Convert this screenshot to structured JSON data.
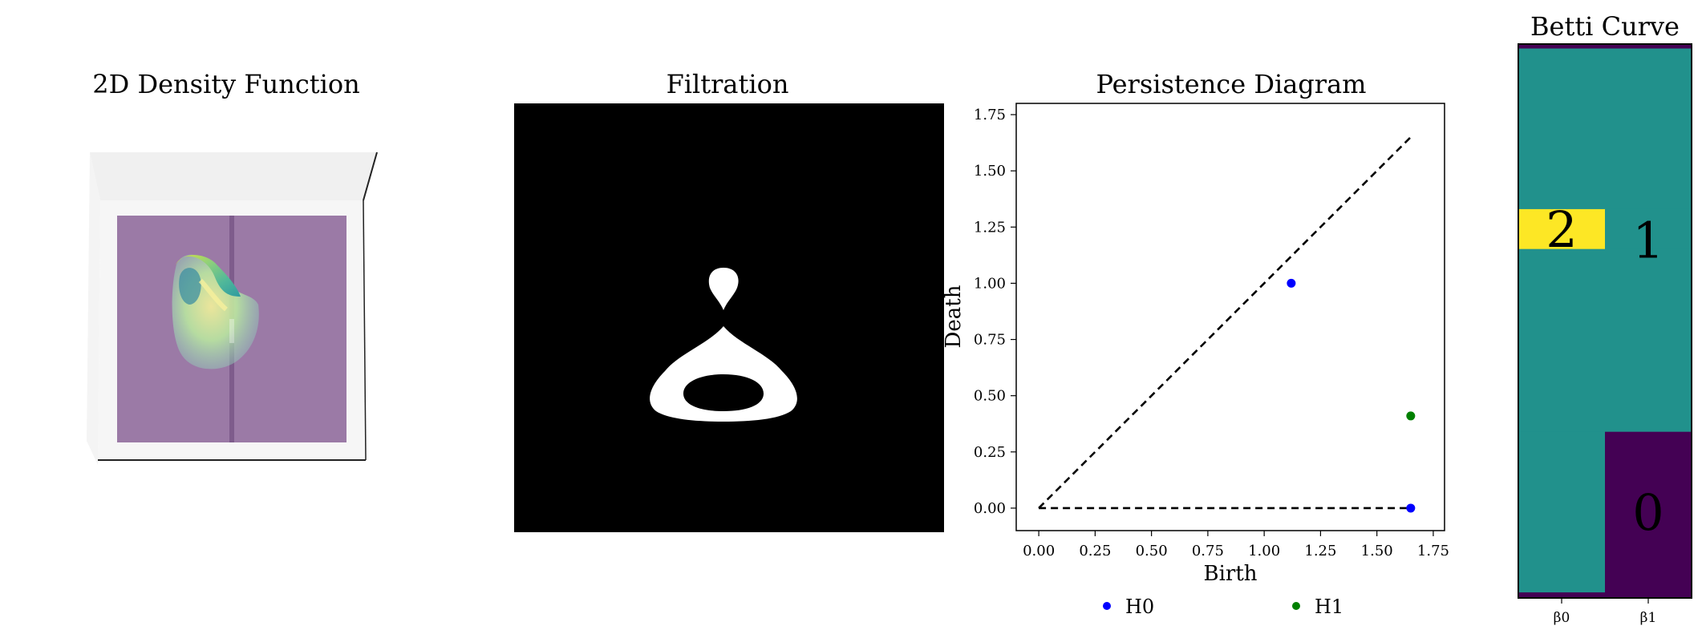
{
  "panels": {
    "density": {
      "title": "2D Density Function"
    },
    "filtration": {
      "title": "Filtration"
    },
    "persistence": {
      "title": "Persistence Diagram"
    },
    "betti": {
      "title": "Betti Curve"
    }
  },
  "colors": {
    "surface_base": "#9b7aa6",
    "viridis_low": "#440154",
    "viridis_mid": "#21918c",
    "viridis_high": "#fde725",
    "h0": "#0000ff",
    "h1": "#008000"
  },
  "chart_data": [
    {
      "type": "scatter",
      "title": "Persistence Diagram",
      "xlabel": "Birth",
      "ylabel": "Death",
      "xlim": [
        -0.1,
        1.8
      ],
      "ylim": [
        -0.1,
        1.8
      ],
      "xticks": [
        "0.00",
        "0.25",
        "0.50",
        "0.75",
        "1.00",
        "1.25",
        "1.50",
        "1.75"
      ],
      "yticks": [
        "0.00",
        "0.25",
        "0.50",
        "0.75",
        "1.00",
        "1.25",
        "1.50",
        "1.75"
      ],
      "grid": false,
      "legend": "bottom",
      "diagonal": {
        "from": [
          0,
          0
        ],
        "to": [
          1.65,
          1.65
        ]
      },
      "baseline": {
        "from": [
          0,
          0
        ],
        "to": [
          1.65,
          0
        ]
      },
      "series": [
        {
          "name": "H0",
          "color": "#0000ff",
          "points": [
            [
              1.12,
              1.0
            ],
            [
              1.65,
              0.0
            ]
          ]
        },
        {
          "name": "H1",
          "color": "#008000",
          "points": [
            [
              1.65,
              0.41
            ]
          ]
        }
      ]
    },
    {
      "type": "heatmap",
      "title": "Betti Curve",
      "columns": [
        "β0",
        "β1"
      ],
      "grid": false,
      "rows_top_to_bottom": [
        {
          "beta0": 0,
          "beta1": 0
        },
        {
          "beta0": 1,
          "beta1": 1
        },
        {
          "beta0": 2,
          "beta1": 1
        },
        {
          "beta0": 1,
          "beta1": 1
        },
        {
          "beta0": 1,
          "beta1": 0
        },
        {
          "beta0": 0,
          "beta1": 0
        }
      ],
      "row_fractions": [
        0.008,
        0.29,
        0.072,
        0.33,
        0.29,
        0.01
      ],
      "labels": [
        {
          "column": "β0",
          "text": "2"
        },
        {
          "column": "β1",
          "text": "1"
        },
        {
          "column": "β1",
          "text": "0"
        }
      ]
    }
  ]
}
